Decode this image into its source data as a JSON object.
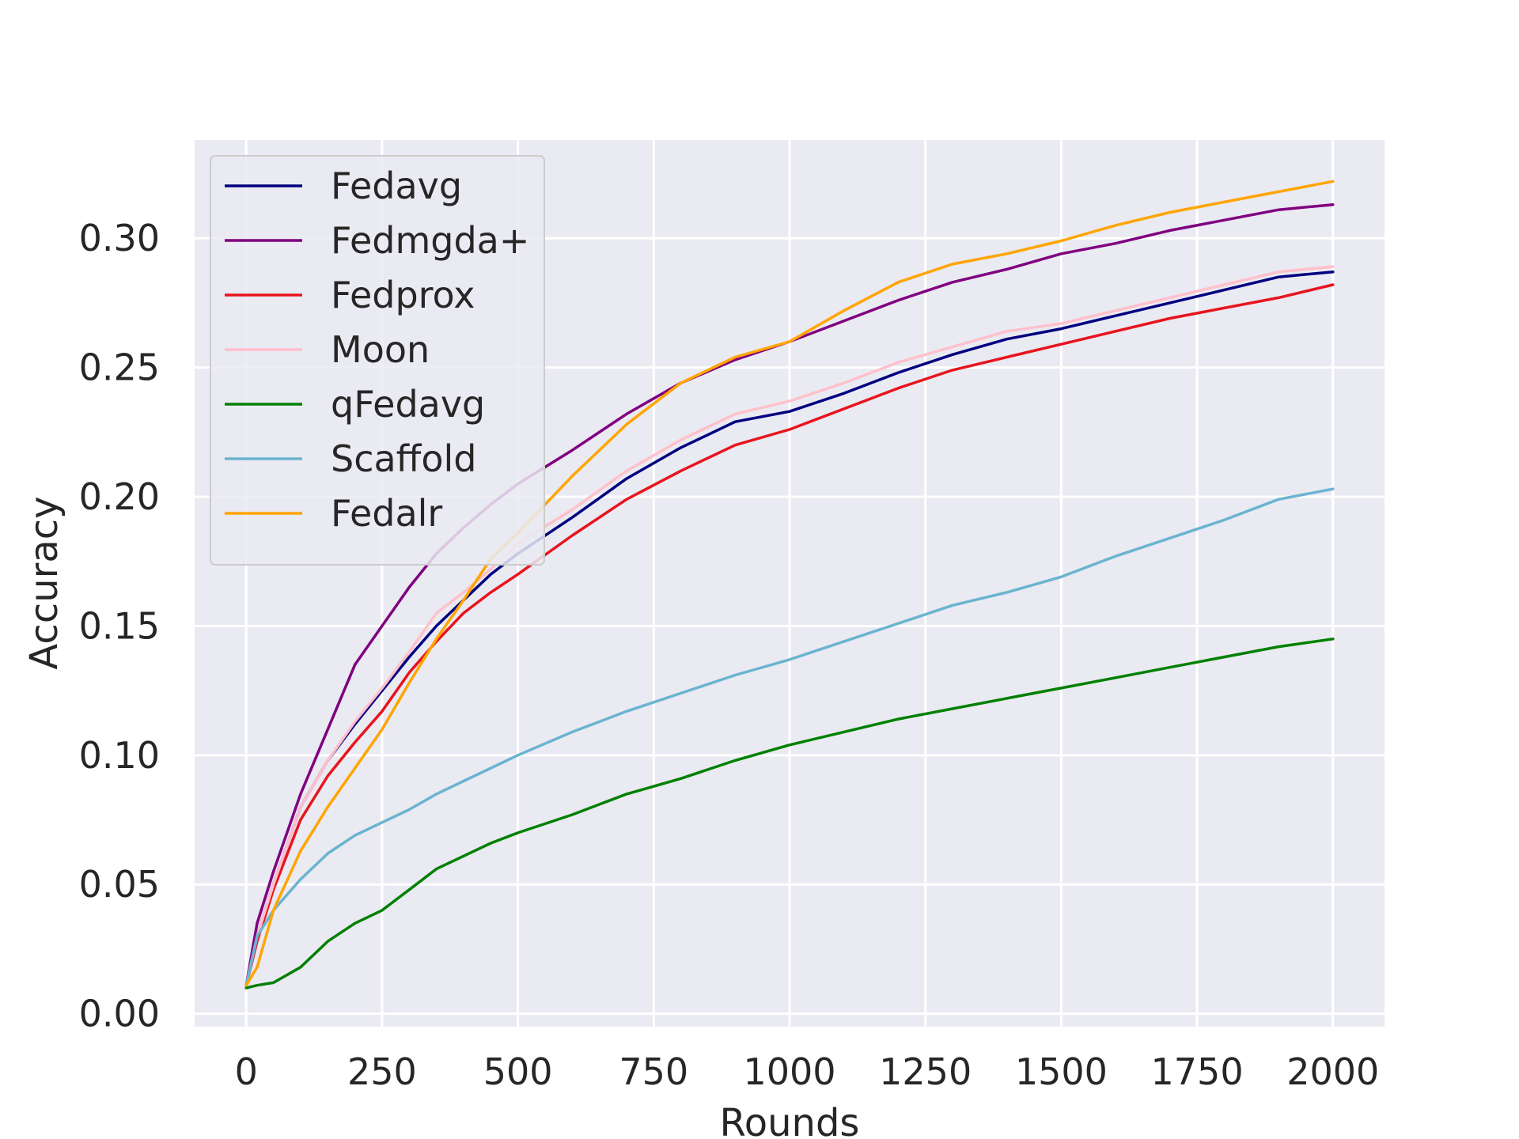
{
  "chart_data": {
    "type": "line",
    "title": "",
    "xlabel": "Rounds",
    "ylabel": "Accuracy",
    "xlim": [
      -95,
      2095
    ],
    "ylim": [
      -0.005,
      0.338
    ],
    "xticks": [
      0,
      250,
      500,
      750,
      1000,
      1250,
      1500,
      1750,
      2000
    ],
    "xtick_labels": [
      "0",
      "250",
      "500",
      "750",
      "1000",
      "1250",
      "1500",
      "1750",
      "2000"
    ],
    "yticks": [
      0.0,
      0.05,
      0.1,
      0.15,
      0.2,
      0.25,
      0.3
    ],
    "ytick_labels": [
      "0.00",
      "0.05",
      "0.10",
      "0.15",
      "0.20",
      "0.25",
      "0.30"
    ],
    "grid": true,
    "legend_position": "top-left",
    "background": "#eaeaf2",
    "x": [
      0,
      20,
      50,
      100,
      150,
      200,
      250,
      300,
      350,
      400,
      450,
      500,
      600,
      700,
      800,
      900,
      1000,
      1100,
      1200,
      1300,
      1400,
      1500,
      1600,
      1700,
      1800,
      1900,
      2000
    ],
    "series": [
      {
        "name": "Fedavg",
        "color": "#000080",
        "values": [
          0.011,
          0.03,
          0.05,
          0.08,
          0.098,
          0.112,
          0.125,
          0.138,
          0.15,
          0.16,
          0.17,
          0.178,
          0.192,
          0.207,
          0.219,
          0.229,
          0.233,
          0.24,
          0.248,
          0.255,
          0.261,
          0.265,
          0.27,
          0.275,
          0.28,
          0.285,
          0.287
        ]
      },
      {
        "name": "Fedmgda+",
        "color": "#800080",
        "values": [
          0.011,
          0.035,
          0.055,
          0.085,
          0.11,
          0.135,
          0.15,
          0.165,
          0.178,
          0.188,
          0.197,
          0.205,
          0.218,
          0.232,
          0.244,
          0.253,
          0.26,
          0.268,
          0.276,
          0.283,
          0.288,
          0.294,
          0.298,
          0.303,
          0.307,
          0.311,
          0.313
        ]
      },
      {
        "name": "Fedprox",
        "color": "#e8141e",
        "values": [
          0.011,
          0.028,
          0.048,
          0.075,
          0.092,
          0.105,
          0.117,
          0.132,
          0.144,
          0.155,
          0.163,
          0.17,
          0.185,
          0.199,
          0.21,
          0.22,
          0.226,
          0.234,
          0.242,
          0.249,
          0.254,
          0.259,
          0.264,
          0.269,
          0.273,
          0.277,
          0.282
        ]
      },
      {
        "name": "Moon",
        "color": "#ffc0cb",
        "values": [
          0.011,
          0.03,
          0.05,
          0.08,
          0.098,
          0.113,
          0.126,
          0.14,
          0.155,
          0.163,
          0.172,
          0.182,
          0.195,
          0.21,
          0.222,
          0.232,
          0.237,
          0.244,
          0.252,
          0.258,
          0.264,
          0.267,
          0.272,
          0.277,
          0.282,
          0.287,
          0.289
        ]
      },
      {
        "name": "qFedavg",
        "color": "#008000",
        "values": [
          0.01,
          0.011,
          0.012,
          0.018,
          0.028,
          0.035,
          0.04,
          0.048,
          0.056,
          0.061,
          0.066,
          0.07,
          0.077,
          0.085,
          0.091,
          0.098,
          0.104,
          0.109,
          0.114,
          0.118,
          0.122,
          0.126,
          0.13,
          0.134,
          0.138,
          0.142,
          0.145
        ]
      },
      {
        "name": "Scaffold",
        "color": "#6ab4d0",
        "values": [
          0.011,
          0.03,
          0.04,
          0.052,
          0.062,
          0.069,
          0.074,
          0.079,
          0.085,
          0.09,
          0.095,
          0.1,
          0.109,
          0.117,
          0.124,
          0.131,
          0.137,
          0.144,
          0.151,
          0.158,
          0.163,
          0.169,
          0.177,
          0.184,
          0.191,
          0.199,
          0.203
        ]
      },
      {
        "name": "Fedalr",
        "color": "#ffa500",
        "values": [
          0.011,
          0.018,
          0.04,
          0.063,
          0.08,
          0.095,
          0.11,
          0.128,
          0.145,
          0.16,
          0.176,
          0.186,
          0.208,
          0.228,
          0.244,
          0.254,
          0.26,
          0.272,
          0.283,
          0.29,
          0.294,
          0.299,
          0.305,
          0.31,
          0.314,
          0.318,
          0.322
        ]
      }
    ]
  }
}
